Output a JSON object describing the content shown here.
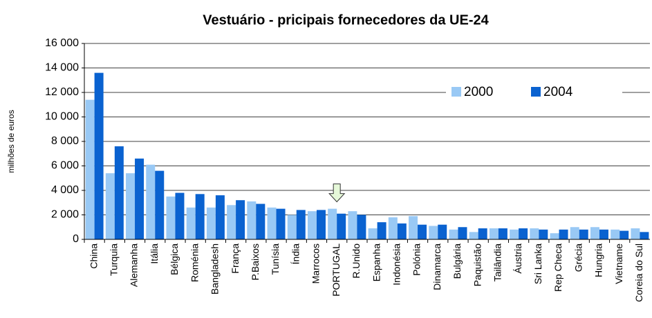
{
  "chart_data": {
    "type": "bar",
    "title": "Vestuário - pricipais fornecedores da UE-24",
    "y_label": "milhões de euros",
    "categories": [
      "China",
      "Turquia",
      "Alemanha",
      "Itália",
      "Bélgica",
      "Roménia",
      "Bangladesh",
      "França",
      "P.Baixos",
      "Tunísia",
      "Índia",
      "Marrocos",
      "PORTUGAL",
      "R.Unido",
      "Espanha",
      "Indonésia",
      "Polónia",
      "Dinamarca",
      "Bulgária",
      "Paquistão",
      "Tailândia",
      "Áustria",
      "Sri Lanka",
      "Rep Checa",
      "Grécia",
      "Hungria",
      "Vietname",
      "Coreia do Sul"
    ],
    "series": [
      {
        "name": "2000",
        "color": "#99c9f5",
        "values": [
          11400,
          5400,
          5400,
          6100,
          3500,
          2600,
          2600,
          2800,
          3100,
          2600,
          2000,
          2300,
          2500,
          2300,
          900,
          1800,
          1900,
          1100,
          800,
          600,
          900,
          800,
          900,
          500,
          1000,
          1000,
          800,
          900
        ]
      },
      {
        "name": "2004",
        "color": "#0a62d0",
        "values": [
          13600,
          7600,
          6600,
          5600,
          3800,
          3700,
          3600,
          3200,
          2900,
          2500,
          2400,
          2400,
          2100,
          2000,
          1400,
          1300,
          1200,
          1200,
          1000,
          900,
          900,
          900,
          800,
          800,
          800,
          800,
          700,
          600
        ]
      }
    ],
    "ylim": [
      0,
      16000
    ],
    "yticks": [
      0,
      {
        "value": 2000,
        "label": "2 000"
      },
      {
        "value": 4000,
        "label": "4 000"
      },
      {
        "value": 6000,
        "label": "6 000"
      },
      {
        "value": 8000,
        "label": "8 000"
      },
      {
        "value": 10000,
        "label": "10 000"
      },
      {
        "value": 12000,
        "label": "12 000"
      },
      {
        "value": 14000,
        "label": "14 000"
      },
      {
        "value": 16000,
        "label": "16 000"
      }
    ],
    "grid": true,
    "legend": "upper right"
  }
}
